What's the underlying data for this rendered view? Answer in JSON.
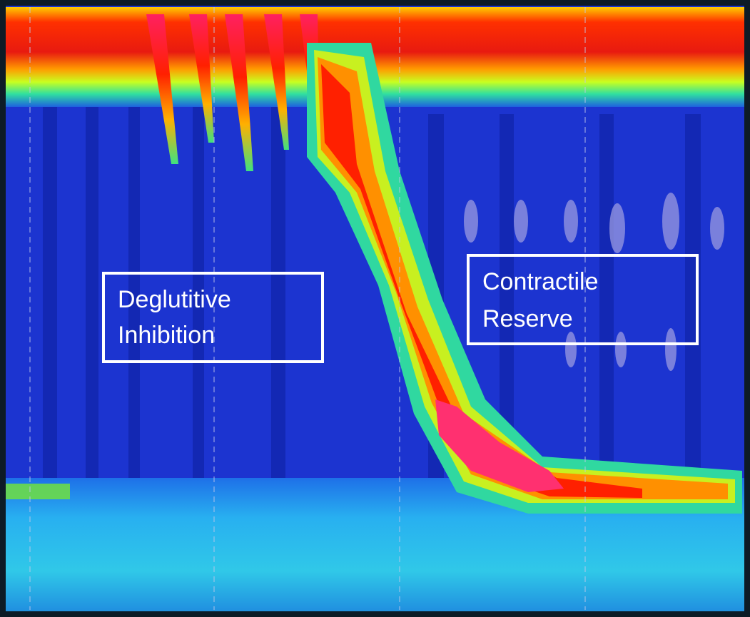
{
  "annotations": [
    {
      "lines": [
        "Deglutitive",
        "Inhibition"
      ]
    },
    {
      "lines": [
        "Contractile",
        "Reserve"
      ]
    }
  ]
}
